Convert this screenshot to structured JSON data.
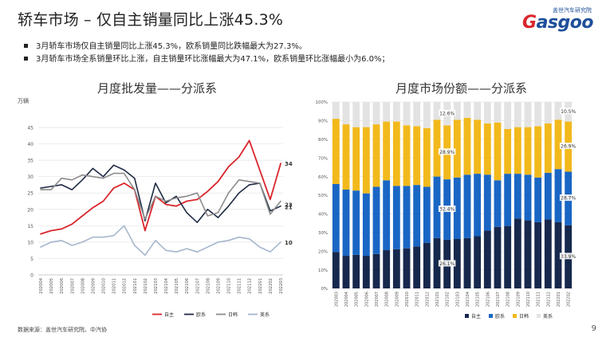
{
  "page": {
    "title": "轿车市场 – 仅自主销量同比上涨45.3%",
    "brand_cn": "盖世汽车研究院",
    "brand_logo": "Gasgoo",
    "bullets": [
      "3月轿车市场仅自主销量同比上涨45.3%，欧系销量同比跌幅最大为27.3%。",
      "3月轿车市场全系销量环比上涨，自主销量环比涨幅最大为47.1%，欧系销量环比涨幅最小为6.0%；"
    ],
    "source": "数据来源：盖世汽车研究院、中汽协",
    "page_number": "9",
    "colors": {
      "brand_blue": "#1f4f9a",
      "brand_red": "#d9262c"
    }
  },
  "chart_data": [
    {
      "type": "line",
      "title": "月度批发量——分派系",
      "ylabel": "万辆",
      "ylim": [
        0,
        45
      ],
      "yticks": [
        "0",
        "5",
        "10",
        "15",
        "20",
        "25",
        "30",
        "35",
        "40",
        "45"
      ],
      "categories": [
        "202004",
        "202005",
        "202006",
        "202007",
        "202008",
        "202009",
        "202010",
        "202011",
        "202012",
        "202101",
        "202102",
        "202103",
        "202104",
        "202105",
        "202106",
        "202107",
        "202108",
        "202109",
        "202110",
        "202111",
        "202112",
        "202201",
        "202202",
        "202203"
      ],
      "series": [
        {
          "name": "自主",
          "color": "#d9262c",
          "values": [
            12.5,
            13.5,
            14.0,
            15.5,
            18.0,
            20.5,
            22.5,
            26.5,
            28.0,
            26.0,
            13.5,
            24.0,
            21.5,
            21.0,
            22.5,
            23.0,
            25.5,
            28.5,
            33.0,
            36.0,
            41.0,
            32.0,
            23.0,
            34.0
          ]
        },
        {
          "name": "欧系",
          "color": "#1f2a44",
          "values": [
            26.5,
            27.0,
            27.5,
            26.0,
            29.0,
            32.5,
            30.0,
            33.5,
            32.0,
            29.5,
            16.5,
            28.0,
            22.0,
            24.0,
            19.0,
            16.0,
            20.0,
            17.5,
            21.0,
            25.0,
            27.5,
            28.0,
            19.5,
            21.0
          ]
        },
        {
          "name": "日韩",
          "color": "#8c8c8c",
          "values": [
            26.0,
            26.0,
            29.5,
            29.0,
            30.5,
            30.0,
            29.5,
            31.0,
            31.0,
            26.0,
            17.0,
            24.0,
            22.5,
            23.5,
            24.0,
            25.0,
            18.0,
            19.0,
            25.0,
            29.0,
            28.5,
            28.0,
            18.5,
            22.5
          ]
        },
        {
          "name": "美系",
          "color": "#a6b6cc",
          "values": [
            8.5,
            10.0,
            10.5,
            9.0,
            10.0,
            11.5,
            11.5,
            12.0,
            15.0,
            9.0,
            6.0,
            10.5,
            7.5,
            7.0,
            8.0,
            7.0,
            8.5,
            10.0,
            10.5,
            11.5,
            11.0,
            8.5,
            7.0,
            10.0
          ]
        }
      ],
      "end_labels": [
        "34",
        "21",
        "23",
        "10"
      ],
      "legend_position": "bottom",
      "grid": true
    },
    {
      "type": "bar",
      "stacked": true,
      "title": "月度市场份额——分派系",
      "ylim": [
        0,
        100
      ],
      "yticks": [
        "0%",
        "10%",
        "20%",
        "30%",
        "40%",
        "50%",
        "60%",
        "70%",
        "80%",
        "90%",
        "100%"
      ],
      "categories": [
        "202003",
        "202004",
        "202005",
        "202006",
        "202007",
        "202008",
        "202009",
        "202010",
        "202011",
        "202012",
        "202101",
        "202102",
        "202103",
        "202104",
        "202105",
        "202106",
        "202107",
        "202108",
        "202109",
        "202110",
        "202111",
        "202112",
        "202201",
        "202202"
      ],
      "series": [
        {
          "name": "自主",
          "color": "#17284d",
          "values": [
            19.5,
            17.5,
            18.0,
            17.5,
            18.5,
            20.5,
            21.0,
            21.5,
            22.5,
            24.5,
            27.0,
            26.1,
            26.5,
            27.0,
            28.0,
            31.0,
            33.0,
            33.5,
            37.5,
            36.5,
            35.5,
            37.0,
            35.5,
            33.9
          ]
        },
        {
          "name": "欧系",
          "color": "#1a66c4",
          "values": [
            36.5,
            35.5,
            34.5,
            33.5,
            36.0,
            37.5,
            34.0,
            33.5,
            33.0,
            30.0,
            33.0,
            32.4,
            33.0,
            34.0,
            33.5,
            30.0,
            25.0,
            28.0,
            24.0,
            24.5,
            24.0,
            25.0,
            28.5,
            28.7
          ]
        },
        {
          "name": "日韩",
          "color": "#f2b91c",
          "values": [
            35.0,
            35.0,
            34.0,
            35.5,
            33.5,
            31.5,
            34.5,
            32.5,
            31.5,
            31.5,
            30.5,
            28.9,
            31.0,
            30.5,
            29.0,
            27.5,
            31.0,
            24.0,
            25.0,
            25.5,
            27.5,
            26.5,
            26.5,
            26.9
          ]
        },
        {
          "name": "美系",
          "color": "#e3e3e3",
          "values": [
            9.0,
            12.0,
            13.5,
            13.5,
            12.0,
            10.5,
            10.5,
            12.5,
            13.0,
            14.0,
            9.5,
            12.6,
            9.5,
            8.5,
            9.5,
            11.5,
            11.0,
            14.5,
            13.5,
            13.5,
            13.0,
            11.5,
            9.5,
            10.5
          ]
        }
      ],
      "data_labels": [
        {
          "category_index": 11,
          "values": [
            "26.1%",
            "32.4%",
            "28.9%",
            "12.6%"
          ]
        },
        {
          "category_index": 23,
          "values": [
            "33.9%",
            "28.7%",
            "26.9%",
            "10.5%"
          ]
        }
      ],
      "legend_position": "bottom",
      "grid": true
    }
  ]
}
